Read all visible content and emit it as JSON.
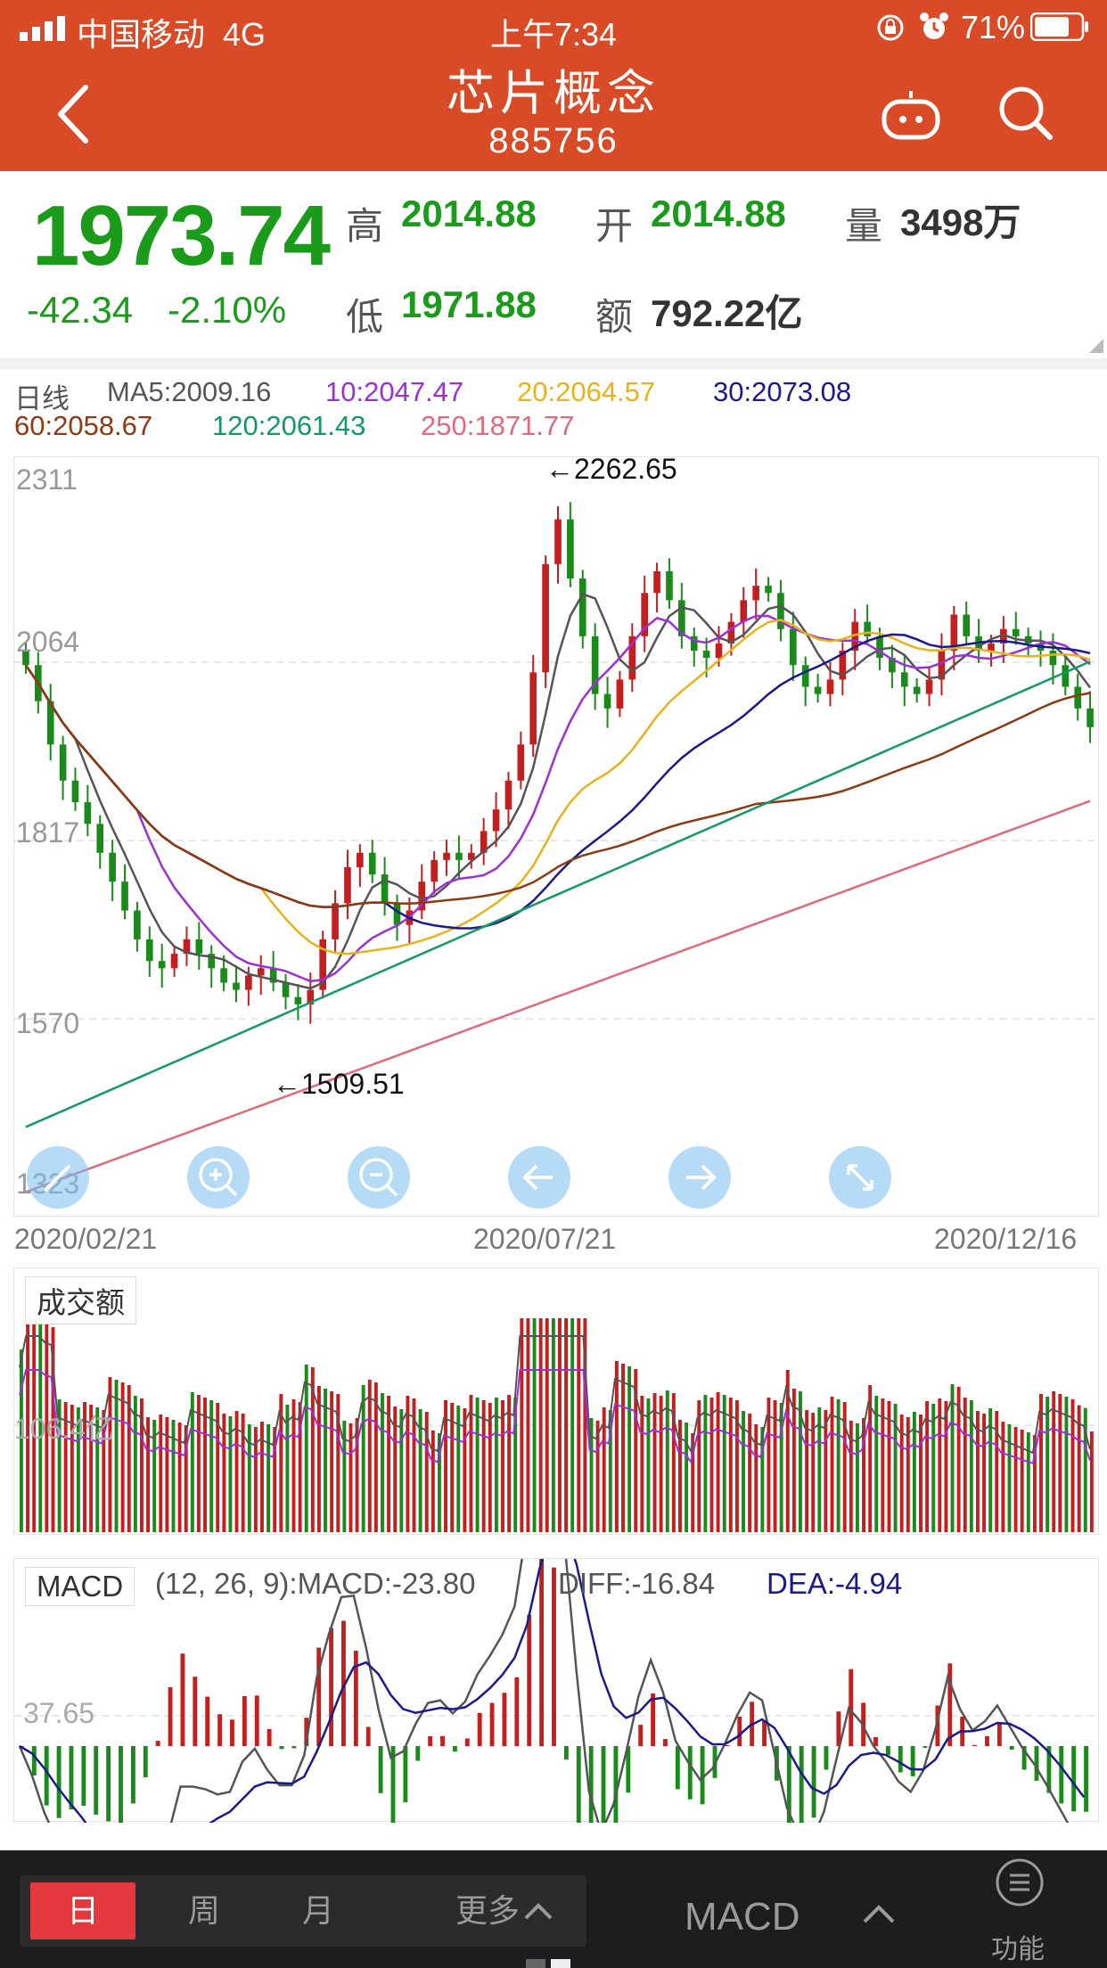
{
  "status_bar": {
    "carrier": "中国移动",
    "network": "4G",
    "time": "上午7:34",
    "battery": "71%"
  },
  "header": {
    "title": "芯片概念",
    "code": "885756"
  },
  "quote": {
    "price": "1973.74",
    "change": "-42.34",
    "change_pct": "-2.10%",
    "high_label": "高",
    "high": "2014.88",
    "low_label": "低",
    "low": "1971.88",
    "open_label": "开",
    "open": "2014.88",
    "amount_label": "额",
    "amount": "792.22亿",
    "volume_label": "量",
    "volume": "3498万"
  },
  "ma_legend": {
    "period": "日线",
    "items": [
      {
        "text": "MA5:2009.16",
        "color": "#555555"
      },
      {
        "text": "10:2047.47",
        "color": "#9b30d9"
      },
      {
        "text": "20:2064.57",
        "color": "#e8b21a"
      },
      {
        "text": "30:2073.08",
        "color": "#1a1a8c"
      },
      {
        "text": "60:2058.67",
        "color": "#8b3a12"
      },
      {
        "text": "120:2061.43",
        "color": "#119966"
      },
      {
        "text": "250:1871.77",
        "color": "#e06a7a"
      }
    ]
  },
  "kline": {
    "y_labels": [
      "2311",
      "2064",
      "1817",
      "1570",
      "1323"
    ],
    "high_mark": "←2262.65",
    "low_mark": "←1509.51",
    "dates": [
      "2020/02/21",
      "2020/07/21",
      "2020/12/16"
    ],
    "colors": {
      "up": "#c41e1e",
      "down": "#1a8a1a"
    }
  },
  "volume": {
    "tag": "成交额",
    "y_label": "106.4亿"
  },
  "macd": {
    "tag": "MACD",
    "params": "(12, 26, 9):MACD:-23.80",
    "diff": "DIFF:-16.84",
    "dea": "DEA:-4.94",
    "y_label": "37.65"
  },
  "toolbar": {
    "tabs": [
      "日",
      "周",
      "月",
      "更多"
    ],
    "indicator": "MACD",
    "func": "功能"
  },
  "chart_data": {
    "type": "candlestick",
    "title": "芯片概念",
    "x_range": [
      "2020/02/21",
      "2020/12/16"
    ],
    "y_ticks": [
      2311,
      2064,
      1817,
      1570,
      1323
    ],
    "ylim": [
      1323,
      2311
    ],
    "marked_high": 2262.65,
    "marked_low": 1509.51,
    "last_close": 1973.74,
    "moving_averages": [
      {
        "name": "MA5",
        "value": 2009.16
      },
      {
        "name": "MA10",
        "value": 2047.47
      },
      {
        "name": "MA20",
        "value": 2064.57
      },
      {
        "name": "MA30",
        "value": 2073.08
      },
      {
        "name": "MA60",
        "value": 2058.67
      },
      {
        "name": "MA120",
        "value": 2061.43
      },
      {
        "name": "MA250",
        "value": 1871.77
      }
    ],
    "series": [
      {
        "name": "close",
        "values": [
          2060,
          2010,
          1950,
          1900,
          1870,
          1840,
          1800,
          1760,
          1720,
          1680,
          1650,
          1640,
          1660,
          1680,
          1660,
          1640,
          1620,
          1610,
          1630,
          1640,
          1620,
          1600,
          1590,
          1610,
          1680,
          1730,
          1780,
          1800,
          1770,
          1730,
          1700,
          1720,
          1760,
          1790,
          1800,
          1790,
          1800,
          1830,
          1860,
          1900,
          1950,
          2050,
          2200,
          2262,
          2180,
          2100,
          2020,
          2000,
          2040,
          2100,
          2160,
          2190,
          2150,
          2100,
          2080,
          2070,
          2090,
          2120,
          2150,
          2170,
          2160,
          2110,
          2060,
          2030,
          2020,
          2040,
          2080,
          2120,
          2100,
          2070,
          2050,
          2030,
          2020,
          2040,
          2080,
          2130,
          2100,
          2080,
          2090,
          2110,
          2100,
          2090,
          2080,
          2060,
          2030,
          2000,
          1974
        ]
      }
    ]
  }
}
